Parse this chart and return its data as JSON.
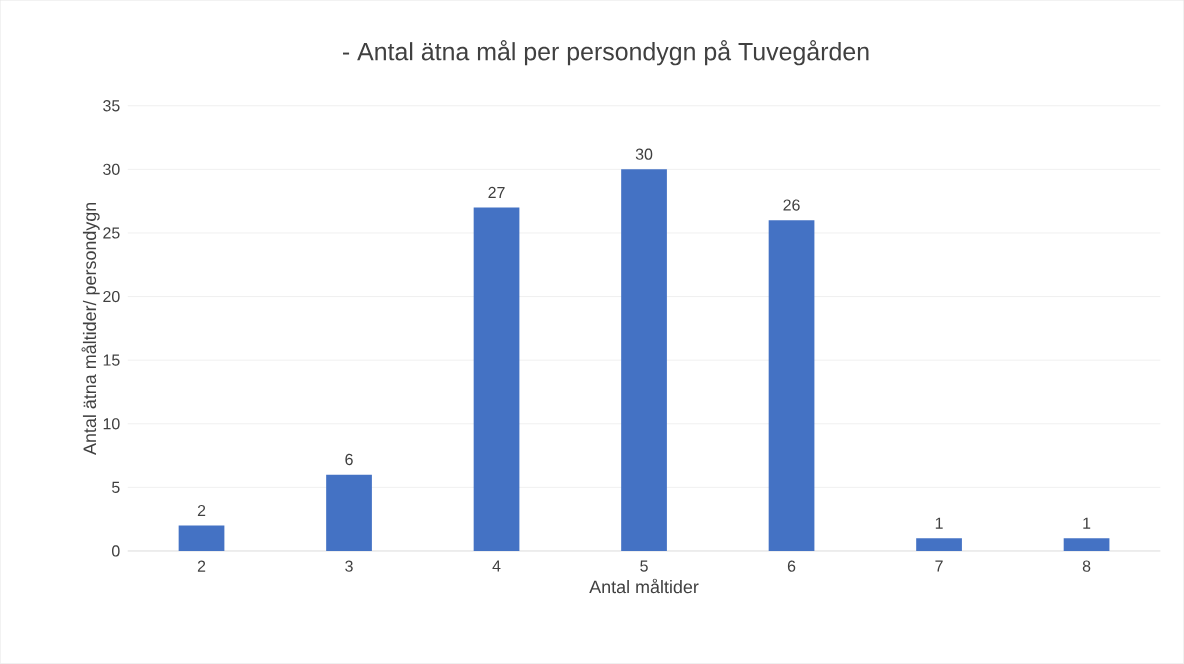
{
  "chart_data": {
    "type": "bar",
    "title": "- Antal ätna mål per persondygn på Tuvegården",
    "xlabel": "Antal måltider",
    "ylabel": "Antal ätna måltider/ persondygn",
    "categories": [
      "2",
      "3",
      "4",
      "5",
      "6",
      "7",
      "8"
    ],
    "values": [
      2,
      6,
      27,
      30,
      26,
      1,
      1
    ],
    "color": "#4472c4",
    "ylim": [
      0,
      35
    ],
    "yticks": [
      0,
      5,
      10,
      15,
      20,
      25,
      30,
      35
    ],
    "grid": "y",
    "data_labels": true
  }
}
